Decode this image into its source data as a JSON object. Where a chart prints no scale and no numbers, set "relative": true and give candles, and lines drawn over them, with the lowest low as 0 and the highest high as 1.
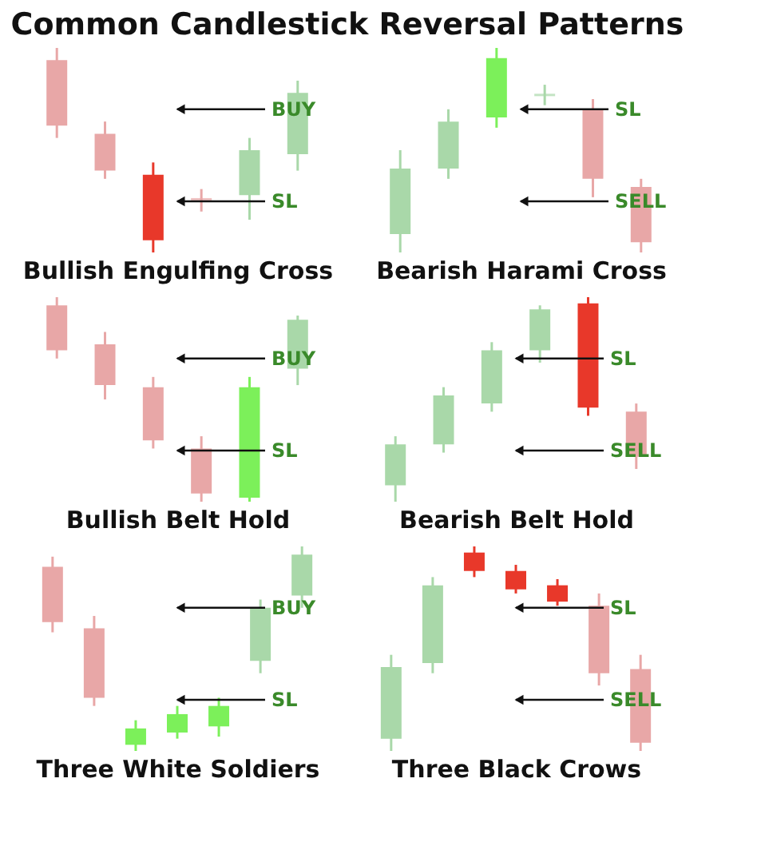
{
  "chart_data": [
    {
      "type": "candlestick",
      "relative": true,
      "tick_labels": false,
      "title": "Common Candlestick Reversal Patterns",
      "xlabel": "Bullish Engulfing Cross",
      "categories": [
        null,
        null,
        null,
        null,
        null,
        null
      ],
      "ohlc": [
        [
          0.94,
          1.0,
          0.56,
          0.62
        ],
        [
          0.58,
          0.64,
          0.36,
          0.4
        ],
        [
          0.38,
          0.44,
          0,
          0.06
        ],
        [
          0.26,
          0.31,
          0.2,
          0.26
        ],
        [
          0.28,
          0.56,
          0.16,
          0.5
        ],
        [
          0.48,
          0.84,
          0.4,
          0.78
        ]
      ],
      "colors": [
        "#e8a7a7",
        "#e8a7a7",
        "#e8382a",
        "#e8a7a7",
        "#a9d8a9",
        "#a9d8a9"
      ],
      "annotations": [
        "BUY",
        "SL"
      ]
    },
    {
      "type": "candlestick",
      "relative": true,
      "tick_labels": false,
      "xlabel": "Bearish Harami Cross",
      "categories": [
        null,
        null,
        null,
        null,
        null,
        null
      ],
      "ohlc": [
        [
          0.09,
          0.5,
          0,
          0.41
        ],
        [
          0.41,
          0.7,
          0.36,
          0.64
        ],
        [
          0.66,
          1,
          0.61,
          0.95
        ],
        [
          0.77,
          0.82,
          0.72,
          0.77
        ],
        [
          0.7,
          0.75,
          0.27,
          0.36
        ],
        [
          0.32,
          0.36,
          0,
          0.05
        ]
      ],
      "colors": [
        "#a9d8a9",
        "#a9d8a9",
        "#7cf05a",
        "#a9d8a9",
        "#e8a7a7",
        "#e8a7a7"
      ],
      "annotations": [
        "SL",
        "SELL"
      ]
    },
    {
      "type": "candlestick",
      "relative": true,
      "tick_labels": false,
      "xlabel": "Bullish Belt Hold",
      "categories": [
        null,
        null,
        null,
        null,
        null,
        null
      ],
      "ohlc": [
        [
          0.96,
          1,
          0.7,
          0.74
        ],
        [
          0.77,
          0.83,
          0.5,
          0.57
        ],
        [
          0.56,
          0.61,
          0.26,
          0.3
        ],
        [
          0.26,
          0.32,
          0,
          0.04
        ],
        [
          0.02,
          0.61,
          0,
          0.56
        ],
        [
          0.65,
          0.91,
          0.57,
          0.89
        ]
      ],
      "colors": [
        "#e8a7a7",
        "#e8a7a7",
        "#e8a7a7",
        "#e8a7a7",
        "#7cf05a",
        "#a9d8a9"
      ],
      "annotations": [
        "BUY",
        "SL"
      ]
    },
    {
      "type": "candlestick",
      "relative": true,
      "tick_labels": false,
      "xlabel": "Bearish Belt Hold",
      "categories": [
        null,
        null,
        null,
        null,
        null,
        null
      ],
      "ohlc": [
        [
          0.08,
          0.32,
          0,
          0.28
        ],
        [
          0.28,
          0.56,
          0.24,
          0.52
        ],
        [
          0.48,
          0.78,
          0.44,
          0.74
        ],
        [
          0.74,
          0.96,
          0.68,
          0.94
        ],
        [
          0.97,
          1,
          0.42,
          0.46
        ],
        [
          0.44,
          0.48,
          0.16,
          0.22
        ]
      ],
      "colors": [
        "#a9d8a9",
        "#a9d8a9",
        "#a9d8a9",
        "#a9d8a9",
        "#e8382a",
        "#e8a7a7"
      ],
      "annotations": [
        "SL",
        "SELL"
      ]
    },
    {
      "type": "candlestick",
      "relative": true,
      "tick_labels": false,
      "xlabel": "Three White Soldiers",
      "categories": [
        null,
        null,
        null,
        null,
        null,
        null,
        null
      ],
      "ohlc": [
        [
          0.9,
          0.95,
          0.58,
          0.63
        ],
        [
          0.6,
          0.66,
          0.22,
          0.26
        ],
        [
          0.03,
          0.15,
          0,
          0.11
        ],
        [
          0.09,
          0.22,
          0.06,
          0.18
        ],
        [
          0.12,
          0.26,
          0.07,
          0.22
        ],
        [
          0.44,
          0.74,
          0.38,
          0.7
        ],
        [
          0.76,
          1,
          0.7,
          0.96
        ]
      ],
      "colors": [
        "#e8a7a7",
        "#e8a7a7",
        "#7cf05a",
        "#7cf05a",
        "#7cf05a",
        "#a9d8a9",
        "#a9d8a9"
      ],
      "annotations": [
        "BUY",
        "SL"
      ]
    },
    {
      "type": "candlestick",
      "relative": true,
      "tick_labels": false,
      "xlabel": "Three Black Crows",
      "categories": [
        null,
        null,
        null,
        null,
        null,
        null,
        null
      ],
      "ohlc": [
        [
          0.06,
          0.47,
          0,
          0.41
        ],
        [
          0.43,
          0.85,
          0.38,
          0.81
        ],
        [
          0.97,
          1,
          0.85,
          0.88
        ],
        [
          0.88,
          0.91,
          0.77,
          0.79
        ],
        [
          0.81,
          0.84,
          0.71,
          0.73
        ],
        [
          0.71,
          0.77,
          0.32,
          0.38
        ],
        [
          0.4,
          0.47,
          0,
          0.04
        ]
      ],
      "colors": [
        "#a9d8a9",
        "#a9d8a9",
        "#e8382a",
        "#e8382a",
        "#e8382a",
        "#e8a7a7",
        "#e8a7a7"
      ],
      "annotations": [
        "SL",
        "SELL"
      ]
    }
  ]
}
